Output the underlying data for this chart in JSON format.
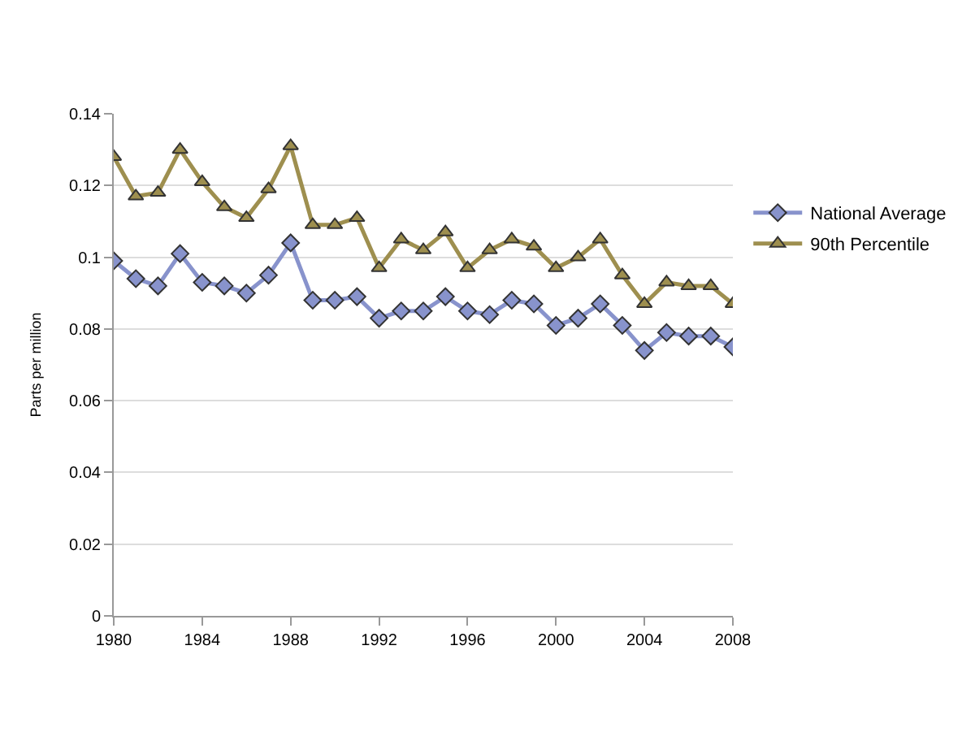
{
  "chart_data": {
    "type": "line",
    "ylabel": "Parts per million",
    "x": [
      1980,
      1981,
      1982,
      1983,
      1984,
      1985,
      1986,
      1987,
      1988,
      1989,
      1990,
      1991,
      1992,
      1993,
      1994,
      1995,
      1996,
      1997,
      1998,
      1999,
      2000,
      2001,
      2002,
      2003,
      2004,
      2005,
      2006,
      2007,
      2008
    ],
    "series": [
      {
        "name": "National Average",
        "color": "#8893cc",
        "marker": "diamond",
        "values": [
          0.099,
          0.094,
          0.092,
          0.101,
          0.093,
          0.092,
          0.09,
          0.095,
          0.104,
          0.088,
          0.088,
          0.089,
          0.083,
          0.085,
          0.085,
          0.089,
          0.085,
          0.084,
          0.088,
          0.087,
          0.081,
          0.083,
          0.087,
          0.081,
          0.074,
          0.079,
          0.078,
          0.078,
          0.075
        ]
      },
      {
        "name": "90th Percentile",
        "color": "#9e8f4f",
        "marker": "triangle",
        "values": [
          0.128,
          0.117,
          0.118,
          0.13,
          0.121,
          0.114,
          0.111,
          0.119,
          0.131,
          0.109,
          0.109,
          0.111,
          0.097,
          0.105,
          0.102,
          0.107,
          0.097,
          0.102,
          0.105,
          0.103,
          0.097,
          0.1,
          0.105,
          0.095,
          0.087,
          0.093,
          0.092,
          0.092,
          0.087
        ]
      }
    ],
    "xlim": [
      1980,
      2008
    ],
    "xticks": [
      1980,
      1984,
      1988,
      1992,
      1996,
      2000,
      2004,
      2008
    ],
    "ylim": [
      0,
      0.14
    ],
    "yticks": [
      0,
      0.02,
      0.04,
      0.06,
      0.08,
      0.1,
      0.12,
      0.14
    ],
    "grid": "y",
    "legend": "top right"
  }
}
